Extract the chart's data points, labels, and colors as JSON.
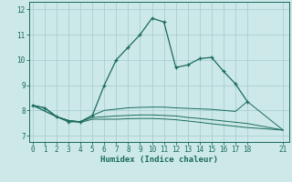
{
  "xlabel": "Humidex (Indice chaleur)",
  "background_color": "#cce8e8",
  "grid_color": "#aacfcf",
  "line_color": "#1a6b5a",
  "xlim": [
    -0.3,
    21.5
  ],
  "ylim": [
    6.75,
    12.3
  ],
  "yticks": [
    7,
    8,
    9,
    10,
    11,
    12
  ],
  "xticks": [
    0,
    1,
    2,
    3,
    4,
    5,
    6,
    7,
    8,
    9,
    10,
    11,
    12,
    13,
    14,
    15,
    16,
    17,
    18,
    21
  ],
  "line1_x": [
    0,
    1,
    2,
    3,
    4,
    5,
    6,
    7,
    8,
    9,
    10,
    11,
    12,
    13,
    14,
    15,
    16,
    17,
    18
  ],
  "line1_y": [
    8.2,
    8.1,
    7.75,
    7.55,
    7.55,
    7.8,
    9.0,
    10.0,
    10.5,
    11.0,
    11.65,
    11.5,
    9.7,
    9.8,
    10.05,
    10.1,
    9.55,
    9.05,
    8.35
  ],
  "line2_x": [
    0,
    1,
    2,
    3,
    4,
    5,
    6,
    7,
    8,
    9,
    10,
    11,
    12,
    13,
    14,
    15,
    16,
    17,
    18,
    21
  ],
  "line2_y": [
    8.2,
    8.1,
    7.75,
    7.6,
    7.55,
    7.8,
    8.0,
    8.05,
    8.1,
    8.12,
    8.13,
    8.13,
    8.1,
    8.08,
    8.06,
    8.04,
    8.0,
    7.96,
    8.35,
    7.22
  ],
  "line3_x": [
    0,
    2,
    3,
    4,
    5,
    6,
    7,
    8,
    9,
    10,
    11,
    12,
    13,
    14,
    15,
    16,
    17,
    18,
    21
  ],
  "line3_y": [
    8.2,
    7.75,
    7.6,
    7.55,
    7.72,
    7.75,
    7.78,
    7.8,
    7.82,
    7.82,
    7.8,
    7.78,
    7.72,
    7.68,
    7.63,
    7.58,
    7.53,
    7.48,
    7.22
  ],
  "line4_x": [
    0,
    2,
    3,
    4,
    5,
    6,
    7,
    8,
    9,
    10,
    11,
    12,
    13,
    14,
    15,
    16,
    17,
    18,
    21
  ],
  "line4_y": [
    8.2,
    7.75,
    7.6,
    7.52,
    7.65,
    7.65,
    7.65,
    7.67,
    7.68,
    7.68,
    7.66,
    7.63,
    7.58,
    7.53,
    7.47,
    7.42,
    7.37,
    7.32,
    7.22
  ]
}
